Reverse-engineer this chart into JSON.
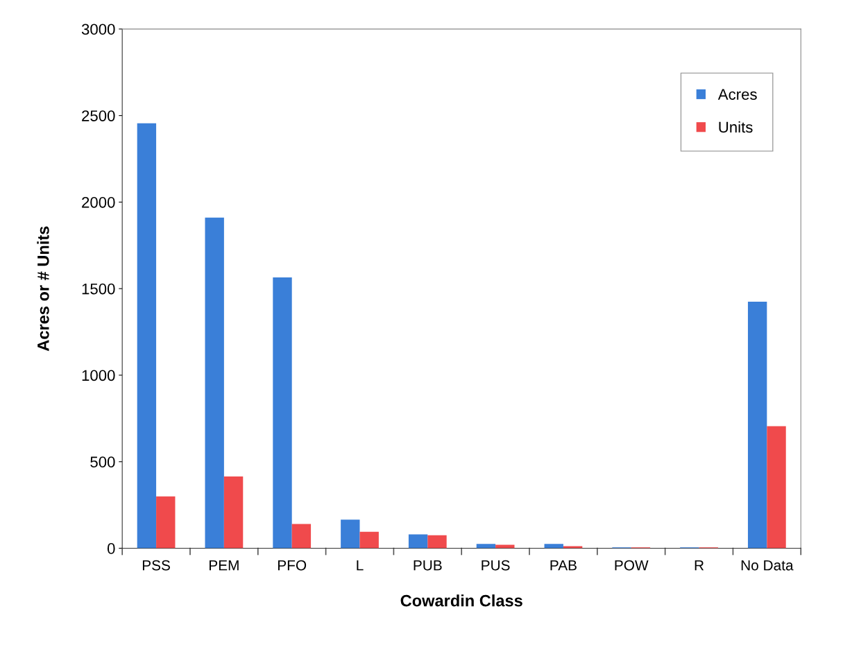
{
  "chart_data": {
    "type": "bar",
    "xlabel": "Cowardin Class",
    "ylabel": "Acres or # Units",
    "categories": [
      "PSS",
      "PEM",
      "PFO",
      "L",
      "PUB",
      "PUS",
      "PAB",
      "POW",
      "R",
      "No Data"
    ],
    "series": [
      {
        "name": "Acres",
        "color": "#3a7fd8",
        "values": [
          2455,
          1910,
          1565,
          165,
          80,
          25,
          25,
          5,
          5,
          1425
        ]
      },
      {
        "name": "Units",
        "color": "#f04a4c",
        "values": [
          300,
          415,
          140,
          95,
          75,
          20,
          12,
          5,
          5,
          705
        ]
      }
    ],
    "ylim": [
      0,
      3000
    ],
    "yticks": [
      0,
      500,
      1000,
      1500,
      2000,
      2500,
      3000
    ],
    "grid": false,
    "legend": "top right"
  }
}
